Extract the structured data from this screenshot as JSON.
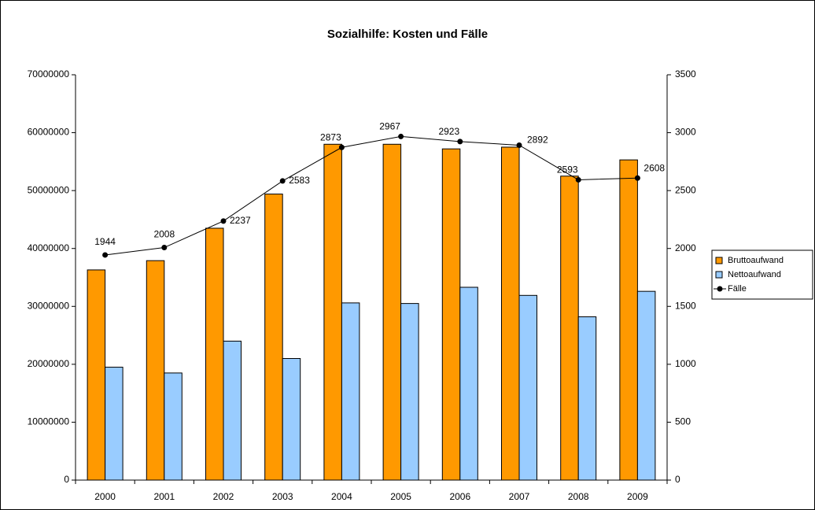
{
  "chart_data": {
    "type": "bar_line",
    "title": "Sozialhilfe: Kosten und Fälle",
    "categories": [
      "2000",
      "2001",
      "2002",
      "2003",
      "2004",
      "2005",
      "2006",
      "2007",
      "2008",
      "2009"
    ],
    "series": [
      {
        "name": "Bruttoaufwand",
        "color": "#ff9900",
        "kind": "bar",
        "values": [
          36300000,
          37900000,
          43500000,
          49400000,
          58000000,
          58000000,
          57200000,
          57500000,
          52500000,
          55300000
        ]
      },
      {
        "name": "Nettoaufwand",
        "color": "#99ccff",
        "kind": "bar",
        "values": [
          19500000,
          18500000,
          24000000,
          21000000,
          30600000,
          30500000,
          33300000,
          31900000,
          28200000,
          32600000
        ]
      },
      {
        "name": "Fälle",
        "color": "#000000",
        "kind": "line",
        "axis": "y2",
        "values": [
          1944,
          2008,
          2237,
          2583,
          2873,
          2967,
          2923,
          2892,
          2593,
          2608
        ]
      }
    ],
    "ylim": [
      0,
      70000000
    ],
    "yticks": [
      0,
      10000000,
      20000000,
      30000000,
      40000000,
      50000000,
      60000000,
      70000000
    ],
    "y2lim": [
      0,
      3500
    ],
    "y2ticks": [
      0,
      500,
      1000,
      1500,
      2000,
      2500,
      3000,
      3500
    ],
    "legend": "right"
  }
}
